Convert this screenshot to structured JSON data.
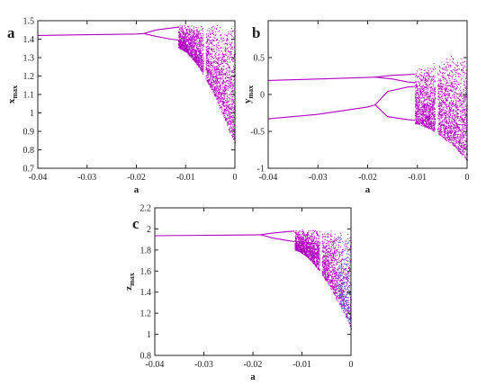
{
  "chart_data": [
    {
      "panel_label": "a",
      "type": "scatter",
      "title": "",
      "xlabel": "a",
      "ylabel": "x",
      "ylabel_sub": "max",
      "xlim": [
        -0.04,
        0
      ],
      "ylim": [
        0.7,
        1.5
      ],
      "xticks": [
        "-0.04",
        "-0.03",
        "-0.02",
        "-0.01",
        "0"
      ],
      "yticks": [
        "0.7",
        "0.8",
        "0.9",
        "1",
        "1.1",
        "1.2",
        "1.3",
        "1.4",
        "1.5"
      ],
      "color": "#b000c0",
      "series": [
        {
          "kind": "curve",
          "x": [
            -0.04,
            -0.03,
            -0.02,
            -0.0185
          ],
          "y": [
            1.42,
            1.424,
            1.428,
            1.43
          ]
        },
        {
          "kind": "curve",
          "x": [
            -0.0185,
            -0.016,
            -0.013,
            -0.0115
          ],
          "y": [
            1.43,
            1.45,
            1.46,
            1.465
          ]
        },
        {
          "kind": "curve",
          "x": [
            -0.0185,
            -0.016,
            -0.013,
            -0.0115
          ],
          "y": [
            1.43,
            1.415,
            1.4,
            1.395
          ]
        },
        {
          "kind": "chaos",
          "x_start": -0.0115,
          "x_end": 0,
          "y_top": 1.48,
          "y_bottom_start": 1.35,
          "y_bottom_end": 0.82,
          "window_x": -0.0062
        }
      ]
    },
    {
      "panel_label": "b",
      "type": "scatter",
      "title": "",
      "xlabel": "a",
      "ylabel": "y",
      "ylabel_sub": "max",
      "xlim": [
        -0.04,
        0
      ],
      "ylim": [
        -1,
        1
      ],
      "xticks": [
        "-0.04",
        "-0.03",
        "-0.02",
        "-0.01",
        "0"
      ],
      "yticks": [
        "-1",
        "-0.5",
        "0",
        "0.5"
      ],
      "color": "#b000c0",
      "series": [
        {
          "kind": "curve",
          "x": [
            -0.04,
            -0.03,
            -0.02,
            -0.0185
          ],
          "y": [
            0.19,
            0.21,
            0.23,
            0.235
          ]
        },
        {
          "kind": "curve",
          "x": [
            -0.0185,
            -0.015,
            -0.012,
            -0.0105
          ],
          "y": [
            0.235,
            0.26,
            0.27,
            0.275
          ]
        },
        {
          "kind": "curve",
          "x": [
            -0.0185,
            -0.015,
            -0.012,
            -0.0105
          ],
          "y": [
            0.235,
            0.21,
            0.17,
            0.16
          ]
        },
        {
          "kind": "curve",
          "x": [
            -0.04,
            -0.03,
            -0.02,
            -0.0185
          ],
          "y": [
            -0.33,
            -0.27,
            -0.17,
            -0.14
          ]
        },
        {
          "kind": "curve",
          "x": [
            -0.0185,
            -0.016,
            -0.012,
            -0.0105
          ],
          "y": [
            -0.14,
            0.04,
            0.1,
            0.11
          ]
        },
        {
          "kind": "curve",
          "x": [
            -0.0185,
            -0.016,
            -0.012,
            -0.0105
          ],
          "y": [
            -0.14,
            -0.3,
            -0.34,
            -0.35
          ]
        },
        {
          "kind": "chaos",
          "x_start": -0.0105,
          "x_end": 0,
          "y_top": 0.35,
          "y_top_end": 0.62,
          "y_bottom_start": -0.4,
          "y_bottom_end": -0.9,
          "window_x": -0.0062
        }
      ]
    },
    {
      "panel_label": "c",
      "type": "scatter",
      "title": "",
      "xlabel": "a",
      "ylabel": "z",
      "ylabel_sub": "max",
      "xlim": [
        -0.04,
        0
      ],
      "ylim": [
        0.8,
        2.2
      ],
      "xticks": [
        "-0.04",
        "-0.03",
        "-0.02",
        "-0.01",
        "0"
      ],
      "yticks": [
        "0.8",
        "1",
        "1.2",
        "1.4",
        "1.6",
        "1.8",
        "2",
        "2.2"
      ],
      "color": "#b000c0",
      "series": [
        {
          "kind": "curve",
          "x": [
            -0.04,
            -0.03,
            -0.02,
            -0.0185
          ],
          "y": [
            1.935,
            1.94,
            1.943,
            1.945
          ]
        },
        {
          "kind": "curve",
          "x": [
            -0.0185,
            -0.016,
            -0.013,
            -0.0115
          ],
          "y": [
            1.945,
            1.96,
            1.975,
            1.98
          ]
        },
        {
          "kind": "curve",
          "x": [
            -0.0185,
            -0.016,
            -0.013,
            -0.0115
          ],
          "y": [
            1.945,
            1.915,
            1.89,
            1.88
          ]
        },
        {
          "kind": "chaos",
          "x_start": -0.0115,
          "x_end": 0,
          "y_top": 1.995,
          "y_bottom_start": 1.8,
          "y_bottom_end": 1.05,
          "window_x": -0.0062
        }
      ]
    }
  ]
}
